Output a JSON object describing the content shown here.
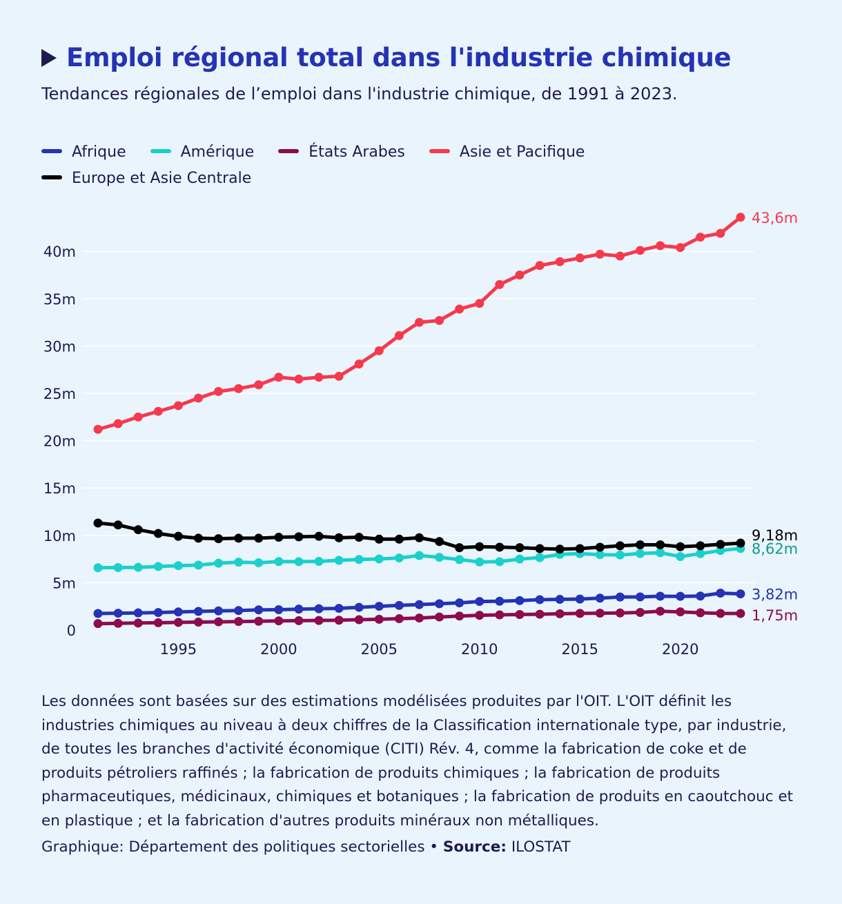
{
  "title": "Emploi régional total dans l'industrie chimique",
  "subtitle": "Tendances régionales de l’emploi dans l'industrie chimique, de 1991 à 2023.",
  "legend": [
    {
      "label": "Afrique",
      "color": "#2533b4"
    },
    {
      "label": "Amérique",
      "color": "#1bd0cb"
    },
    {
      "label": "États Arabes",
      "color": "#8c0c4e"
    },
    {
      "label": "Asie et Pacifique",
      "color": "#f53a4e"
    },
    {
      "label": "Europe et Asie Centrale",
      "color": "#000000"
    }
  ],
  "chart_data": {
    "type": "line",
    "x": [
      1991,
      1992,
      1993,
      1994,
      1995,
      1996,
      1997,
      1998,
      1999,
      2000,
      2001,
      2002,
      2003,
      2004,
      2005,
      2006,
      2007,
      2008,
      2009,
      2010,
      2011,
      2012,
      2013,
      2014,
      2015,
      2016,
      2017,
      2018,
      2019,
      2020,
      2021,
      2022,
      2023
    ],
    "xticks": [
      "1995",
      "2000",
      "2005",
      "2010",
      "2015",
      "2020"
    ],
    "xtick_values": [
      1995,
      2000,
      2005,
      2010,
      2015,
      2020
    ],
    "yticks": [
      "0",
      "5m",
      "10m",
      "15m",
      "20m",
      "25m",
      "30m",
      "35m",
      "40m"
    ],
    "ytick_values": [
      0,
      5,
      10,
      15,
      20,
      25,
      30,
      35,
      40
    ],
    "ylim": [
      0,
      45
    ],
    "grid": true,
    "legend_position": "top",
    "series": [
      {
        "name": "Afrique",
        "color": "#2533b4",
        "label_color": "#2533b4",
        "end_label": "3,82m",
        "values": [
          1.75,
          1.78,
          1.81,
          1.85,
          1.91,
          1.97,
          2.02,
          2.06,
          2.13,
          2.15,
          2.21,
          2.25,
          2.29,
          2.4,
          2.51,
          2.6,
          2.69,
          2.78,
          2.87,
          3.02,
          3.04,
          3.11,
          3.21,
          3.24,
          3.27,
          3.37,
          3.49,
          3.5,
          3.57,
          3.56,
          3.59,
          3.9,
          3.82
        ]
      },
      {
        "name": "Amérique",
        "color": "#1bd0cb",
        "label_color": "#0f9a8e",
        "end_label": "8,62m",
        "values": [
          6.58,
          6.6,
          6.62,
          6.71,
          6.8,
          6.86,
          7.06,
          7.17,
          7.11,
          7.23,
          7.22,
          7.25,
          7.36,
          7.45,
          7.51,
          7.61,
          7.87,
          7.68,
          7.44,
          7.19,
          7.22,
          7.5,
          7.65,
          7.99,
          8.07,
          7.96,
          7.93,
          8.08,
          8.17,
          7.76,
          8.07,
          8.4,
          8.62
        ]
      },
      {
        "name": "États Arabes",
        "color": "#8c0c4e",
        "label_color": "#8c0c4e",
        "end_label": "1,75m",
        "values": [
          0.68,
          0.71,
          0.74,
          0.77,
          0.81,
          0.84,
          0.87,
          0.9,
          0.93,
          0.97,
          0.99,
          1.01,
          1.04,
          1.09,
          1.14,
          1.2,
          1.27,
          1.38,
          1.48,
          1.56,
          1.6,
          1.64,
          1.67,
          1.72,
          1.76,
          1.78,
          1.8,
          1.86,
          1.99,
          1.92,
          1.82,
          1.76,
          1.75
        ]
      },
      {
        "name": "Asie et Pacifique",
        "color": "#f53a4e",
        "label_color": "#f53a4e",
        "end_label": "43,6m",
        "values": [
          21.2,
          21.8,
          22.5,
          23.1,
          23.7,
          24.5,
          25.2,
          25.5,
          25.9,
          26.7,
          26.5,
          26.7,
          26.8,
          28.1,
          29.5,
          31.1,
          32.5,
          32.7,
          33.9,
          34.5,
          36.5,
          37.5,
          38.5,
          38.9,
          39.3,
          39.7,
          39.5,
          40.1,
          40.6,
          40.4,
          41.5,
          41.9,
          43.6
        ]
      },
      {
        "name": "Europe et Asie Centrale",
        "color": "#000000",
        "label_color": "#000000",
        "end_label": "9,18m",
        "values": [
          11.3,
          11.1,
          10.6,
          10.2,
          9.9,
          9.7,
          9.65,
          9.7,
          9.7,
          9.8,
          9.85,
          9.9,
          9.75,
          9.8,
          9.6,
          9.6,
          9.75,
          9.35,
          8.7,
          8.8,
          8.75,
          8.7,
          8.6,
          8.55,
          8.6,
          8.75,
          8.9,
          9.0,
          9.0,
          8.8,
          8.9,
          9.05,
          9.18
        ]
      }
    ]
  },
  "note": "Les données sont basées sur des estimations modélisées produites par l'OIT. L'OIT définit les industries chimiques au niveau à deux chiffres de la Classification internationale type, par industrie, de toutes les branches d'activité économique (CITI) Rév. 4, comme la fabrication de coke et de produits pétroliers raffinés ; la fabrication de produits chimiques ; la fabrication de produits pharmaceutiques, médicinaux, chimiques et botaniques ; la fabrication de produits en caoutchouc et en plastique ; et la fabrication d'autres produits minéraux non métalliques.",
  "credit": {
    "prefix": "Graphique: Département des politiques sectorielles •",
    "source_label": "Source:",
    "source": "ILOSTAT"
  }
}
